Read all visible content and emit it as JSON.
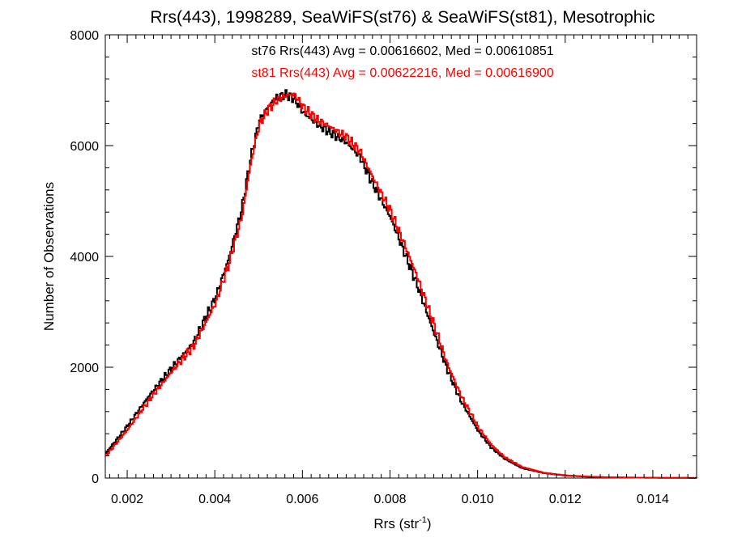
{
  "chart_data": {
    "type": "line",
    "title": "Rrs(443), 1998289, SeaWiFS(st76) & SeaWiFS(st81), Mesotrophic",
    "xlabel": "Rrs (str",
    "xlabel_superscript": "-1",
    "xlabel_suffix": ")",
    "ylabel": "Number of Observations",
    "xlim": [
      0.0015,
      0.015
    ],
    "ylim": [
      0,
      8000
    ],
    "xticks": [
      0.002,
      0.004,
      0.006,
      0.008,
      0.01,
      0.012,
      0.014
    ],
    "xtick_labels": [
      "0.002",
      "0.004",
      "0.006",
      "0.008",
      "0.010",
      "0.012",
      "0.014"
    ],
    "yticks": [
      0,
      2000,
      4000,
      6000,
      8000
    ],
    "ytick_labels": [
      "0",
      "2000",
      "4000",
      "6000",
      "8000"
    ],
    "grid": false,
    "annotations": [
      {
        "text": "st76 Rrs(443) Avg = 0.00616602, Med = 0.00610851",
        "color": "#000000"
      },
      {
        "text": "st81 Rrs(443) Avg = 0.00622216, Med = 0.00616900",
        "color": "#ff0000"
      }
    ],
    "series": [
      {
        "color": "#000000",
        "style": "step",
        "x": [
          0.0015,
          0.002,
          0.0025,
          0.003,
          0.0035,
          0.004,
          0.0043,
          0.0046,
          0.0048,
          0.005,
          0.0052,
          0.0054,
          0.0056,
          0.0058,
          0.006,
          0.0063,
          0.0066,
          0.007,
          0.0073,
          0.0076,
          0.008,
          0.0083,
          0.0086,
          0.009,
          0.0093,
          0.0096,
          0.01,
          0.0103,
          0.0106,
          0.011,
          0.0115,
          0.012,
          0.0125,
          0.013,
          0.014,
          0.015
        ],
        "y": [
          450,
          950,
          1500,
          1980,
          2450,
          3250,
          3950,
          4850,
          5750,
          6450,
          6700,
          6870,
          6920,
          6850,
          6600,
          6400,
          6250,
          6050,
          5800,
          5300,
          4700,
          4100,
          3500,
          2600,
          1950,
          1400,
          850,
          550,
          350,
          180,
          90,
          45,
          25,
          12,
          5,
          2
        ]
      },
      {
        "color": "#ff0000",
        "style": "step",
        "x": [
          0.0015,
          0.002,
          0.0025,
          0.003,
          0.0035,
          0.004,
          0.0043,
          0.0046,
          0.0048,
          0.005,
          0.0052,
          0.0054,
          0.0056,
          0.0058,
          0.006,
          0.0063,
          0.0066,
          0.007,
          0.0073,
          0.0076,
          0.008,
          0.0083,
          0.0086,
          0.009,
          0.0093,
          0.0096,
          0.01,
          0.0103,
          0.0106,
          0.011,
          0.0115,
          0.012,
          0.0125,
          0.013,
          0.014,
          0.015
        ],
        "y": [
          400,
          880,
          1420,
          1920,
          2380,
          3150,
          3850,
          4700,
          5650,
          6380,
          6650,
          6820,
          6900,
          6930,
          6700,
          6480,
          6350,
          6150,
          5900,
          5420,
          4820,
          4250,
          3650,
          2750,
          2050,
          1500,
          920,
          600,
          380,
          200,
          95,
          48,
          26,
          12,
          5,
          2
        ]
      }
    ]
  }
}
